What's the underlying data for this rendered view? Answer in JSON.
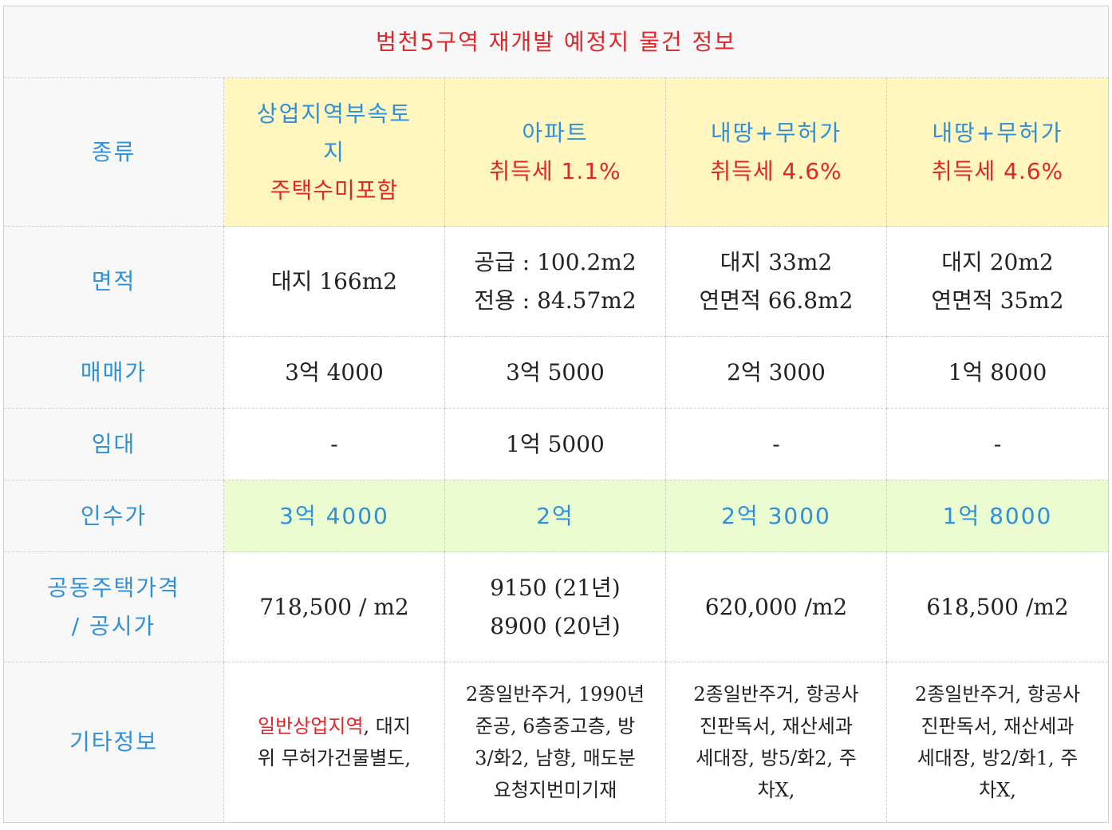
{
  "title": "범천5구역 재개발 예정지 물건 정보",
  "rows": {
    "type": {
      "label": "종류",
      "c1": {
        "line1": "상업지역부속토",
        "line2": "지",
        "line3": "주택수미포함"
      },
      "c2": {
        "line1": "아파트",
        "line2": "취득세 1.1%"
      },
      "c3": {
        "line1": "내땅+무허가",
        "line2": "취득세 4.6%"
      },
      "c4": {
        "line1": "내땅+무허가",
        "line2": "취득세 4.6%"
      }
    },
    "area": {
      "label": "면적",
      "c1": {
        "line1": "대지 166m2"
      },
      "c2": {
        "line1": "공급 : 100.2m2",
        "line2": "전용 : 84.57m2"
      },
      "c3": {
        "line1": "대지 33m2",
        "line2": "연면적 66.8m2"
      },
      "c4": {
        "line1": "대지 20m2",
        "line2": "연면적 35m2"
      }
    },
    "price": {
      "label": "매매가",
      "c1": "3억 4000",
      "c2": "3억 5000",
      "c3": "2억 3000",
      "c4": "1억 8000"
    },
    "lease": {
      "label": "임대",
      "c1": "-",
      "c2": "1억 5000",
      "c3": "-",
      "c4": "-"
    },
    "takeover": {
      "label": "인수가",
      "c1": "3억 4000",
      "c2": "2억",
      "c3": "2억 3000",
      "c4": "1억 8000"
    },
    "official": {
      "label_line1": "공동주택가격",
      "label_line2": "/ 공시가",
      "c1": "718,500 / m2",
      "c2": {
        "line1": "9150 (21년)",
        "line2": "8900 (20년)"
      },
      "c3": "620,000 /m2",
      "c4": "618,500 /m2"
    },
    "etc": {
      "label": "기타정보",
      "c1": {
        "red": "일반상업지역",
        "rest1": ", 대지",
        "line2": "위 무허가건물별도,"
      },
      "c2": {
        "line1": "2종일반주거, 1990년",
        "line2": "준공, 6층중고층, 방",
        "line3": "3/화2, 남향, 매도분",
        "line4": "요청지번미기재"
      },
      "c3": {
        "line1": "2종일반주거, 항공사",
        "line2": "진판독서, 재산세과",
        "line3": "세대장, 방5/화2, 주",
        "line4": "차X,"
      },
      "c4": {
        "line1": "2종일반주거, 항공사",
        "line2": "진판독서, 재산세과",
        "line3": "세대장, 방2/화1, 주",
        "line4": "차X,"
      }
    }
  }
}
